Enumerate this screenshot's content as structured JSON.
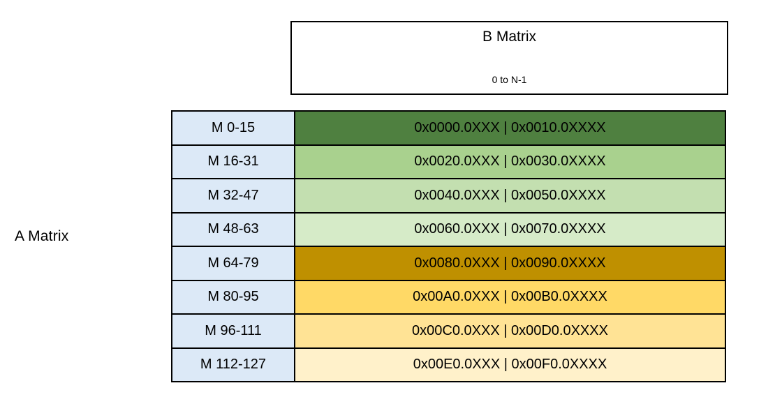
{
  "labels": {
    "a_matrix": "A Matrix"
  },
  "header_box": {
    "title": "B Matrix",
    "subtitle": "0 to N-1"
  },
  "table": {
    "label_bg": "#DCE9F7",
    "border_color": "#000000",
    "rows": [
      {
        "label": "M 0-15",
        "value": "0x0000.0XXX | 0x0010.0XXXX",
        "bg": "#4F8040"
      },
      {
        "label": "M 16-31",
        "value": "0x0020.0XXX | 0x0030.0XXXX",
        "bg": "#A9D18E"
      },
      {
        "label": "M 32-47",
        "value": "0x0040.0XXX | 0x0050.0XXXX",
        "bg": "#C3DFB0"
      },
      {
        "label": "M 48-63",
        "value": "0x0060.0XXX | 0x0070.0XXXX",
        "bg": "#D6EBC8"
      },
      {
        "label": "M 64-79",
        "value": "0x0080.0XXX | 0x0090.0XXXX",
        "bg": "#BF9000"
      },
      {
        "label": "M 80-95",
        "value": "0x00A0.0XXX | 0x00B0.0XXXX",
        "bg": "#FFD966"
      },
      {
        "label": "M 96-111",
        "value": "0x00C0.0XXX | 0x00D0.0XXXX",
        "bg": "#FFE395"
      },
      {
        "label": "M 112-127",
        "value": "0x00E0.0XXX | 0x00F0.0XXXX",
        "bg": "#FFF1CA"
      }
    ]
  }
}
